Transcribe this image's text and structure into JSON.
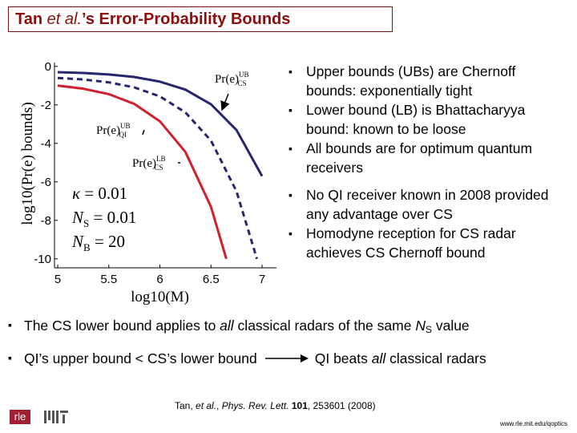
{
  "title": [
    "Tan ",
    "et al.",
    "’s Error-Probability Bounds"
  ],
  "chart_data": {
    "type": "line",
    "x_label": "log10(M)",
    "y_label": "log10(Pr(e) bounds)",
    "xlim": [
      5,
      7.2
    ],
    "ylim": [
      -10.3,
      0.2
    ],
    "xticks": [
      5,
      5.5,
      6,
      6.5,
      7
    ],
    "yticks": [
      0,
      -2,
      -4,
      -6,
      -8,
      -10
    ],
    "series": [
      {
        "name": {
          "base": "Pr(e)",
          "sup": "UB",
          "sub": "CS"
        },
        "color": "#27276e",
        "dash": false,
        "x": [
          5,
          5.25,
          5.5,
          5.75,
          6,
          6.25,
          6.5,
          6.75,
          7
        ],
        "values": [
          -0.3,
          -0.34,
          -0.42,
          -0.55,
          -0.79,
          -1.21,
          -1.97,
          -3.31,
          -5.7
        ]
      },
      {
        "name": {
          "base": "Pr(e)",
          "sup": "UB",
          "sub": "QI"
        },
        "color": "#27276e",
        "dash": true,
        "x": [
          5,
          5.25,
          5.5,
          5.75,
          6,
          6.25,
          6.5,
          6.75,
          6.95
        ],
        "values": [
          -0.6,
          -0.68,
          -0.83,
          -1.09,
          -1.56,
          -2.39,
          -3.86,
          -6.49,
          -10
        ]
      },
      {
        "name": {
          "base": "Pr(e)",
          "sup": "LB",
          "sub": "CS"
        },
        "color": "#d0202e",
        "dash": false,
        "x": [
          5,
          5.25,
          5.5,
          5.75,
          6,
          6.25,
          6.5,
          6.65
        ],
        "values": [
          -1.0,
          -1.16,
          -1.44,
          -1.95,
          -2.85,
          -4.45,
          -7.3,
          -10
        ]
      }
    ],
    "annotations": [
      [
        "κ",
        "",
        " = 0.01"
      ],
      [
        "N",
        "S",
        " = 0.01"
      ],
      [
        "N",
        "B",
        " = 20"
      ]
    ]
  },
  "right_bullets": [
    "Upper bounds (UBs) are Chernoff bounds:  exponentially tight",
    "Lower bound (LB) is Bhattacharyya bound:  known to be loose",
    "All bounds are for optimum quantum receivers",
    "No QI receiver known in 2008 provided any advantage over CS",
    "Homodyne reception for CS radar achieves CS Chernoff bound"
  ],
  "bottom_bullets": [
    [
      "The CS lower bound applies to ",
      "all",
      " classical radars of the same ",
      "N",
      "S",
      " value"
    ],
    [
      "QI’s upper bound < CS’s lower bound",
      "QI beats ",
      "all",
      " classical radars"
    ]
  ],
  "citation": [
    "Tan, ",
    "et al.",
    ", ",
    "Phys. Rev. Lett.",
    " ",
    "101",
    ", 253601 (2008)"
  ],
  "logo": "rle",
  "footer": "www.rle.mit.edu/qoptics"
}
